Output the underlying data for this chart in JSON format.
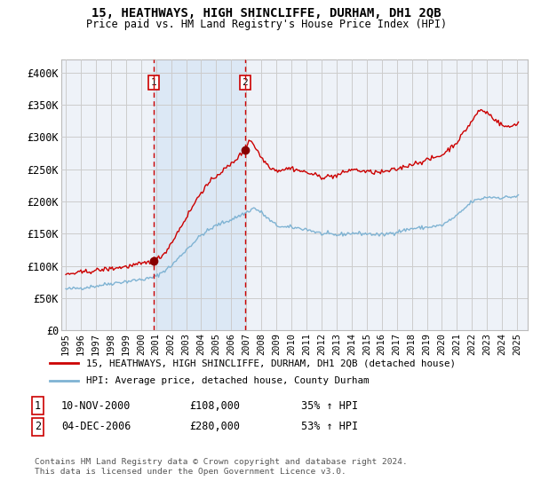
{
  "title": "15, HEATHWAYS, HIGH SHINCLIFFE, DURHAM, DH1 2QB",
  "subtitle": "Price paid vs. HM Land Registry's House Price Index (HPI)",
  "legend_line1": "15, HEATHWAYS, HIGH SHINCLIFFE, DURHAM, DH1 2QB (detached house)",
  "legend_line2": "HPI: Average price, detached house, County Durham",
  "annotation1_date": "10-NOV-2000",
  "annotation1_price": 108000,
  "annotation1_hpi": "35% ↑ HPI",
  "annotation2_date": "04-DEC-2006",
  "annotation2_price": 280000,
  "annotation2_hpi": "53% ↑ HPI",
  "footer": "Contains HM Land Registry data © Crown copyright and database right 2024.\nThis data is licensed under the Open Government Licence v3.0.",
  "red_line_color": "#cc0000",
  "blue_line_color": "#7fb3d3",
  "marker_color": "#880000",
  "vline_color": "#cc0000",
  "shade_color": "#dce8f5",
  "grid_color": "#cccccc",
  "background_color": "#ffffff",
  "plot_bg_color": "#eef2f8",
  "ylim": [
    0,
    420000
  ],
  "yticks": [
    0,
    50000,
    100000,
    150000,
    200000,
    250000,
    300000,
    350000,
    400000
  ],
  "sale1_x": 2000.85,
  "sale1_y": 108000,
  "sale2_x": 2006.92,
  "sale2_y": 280000,
  "xmin": 1994.7,
  "xmax": 2025.7
}
